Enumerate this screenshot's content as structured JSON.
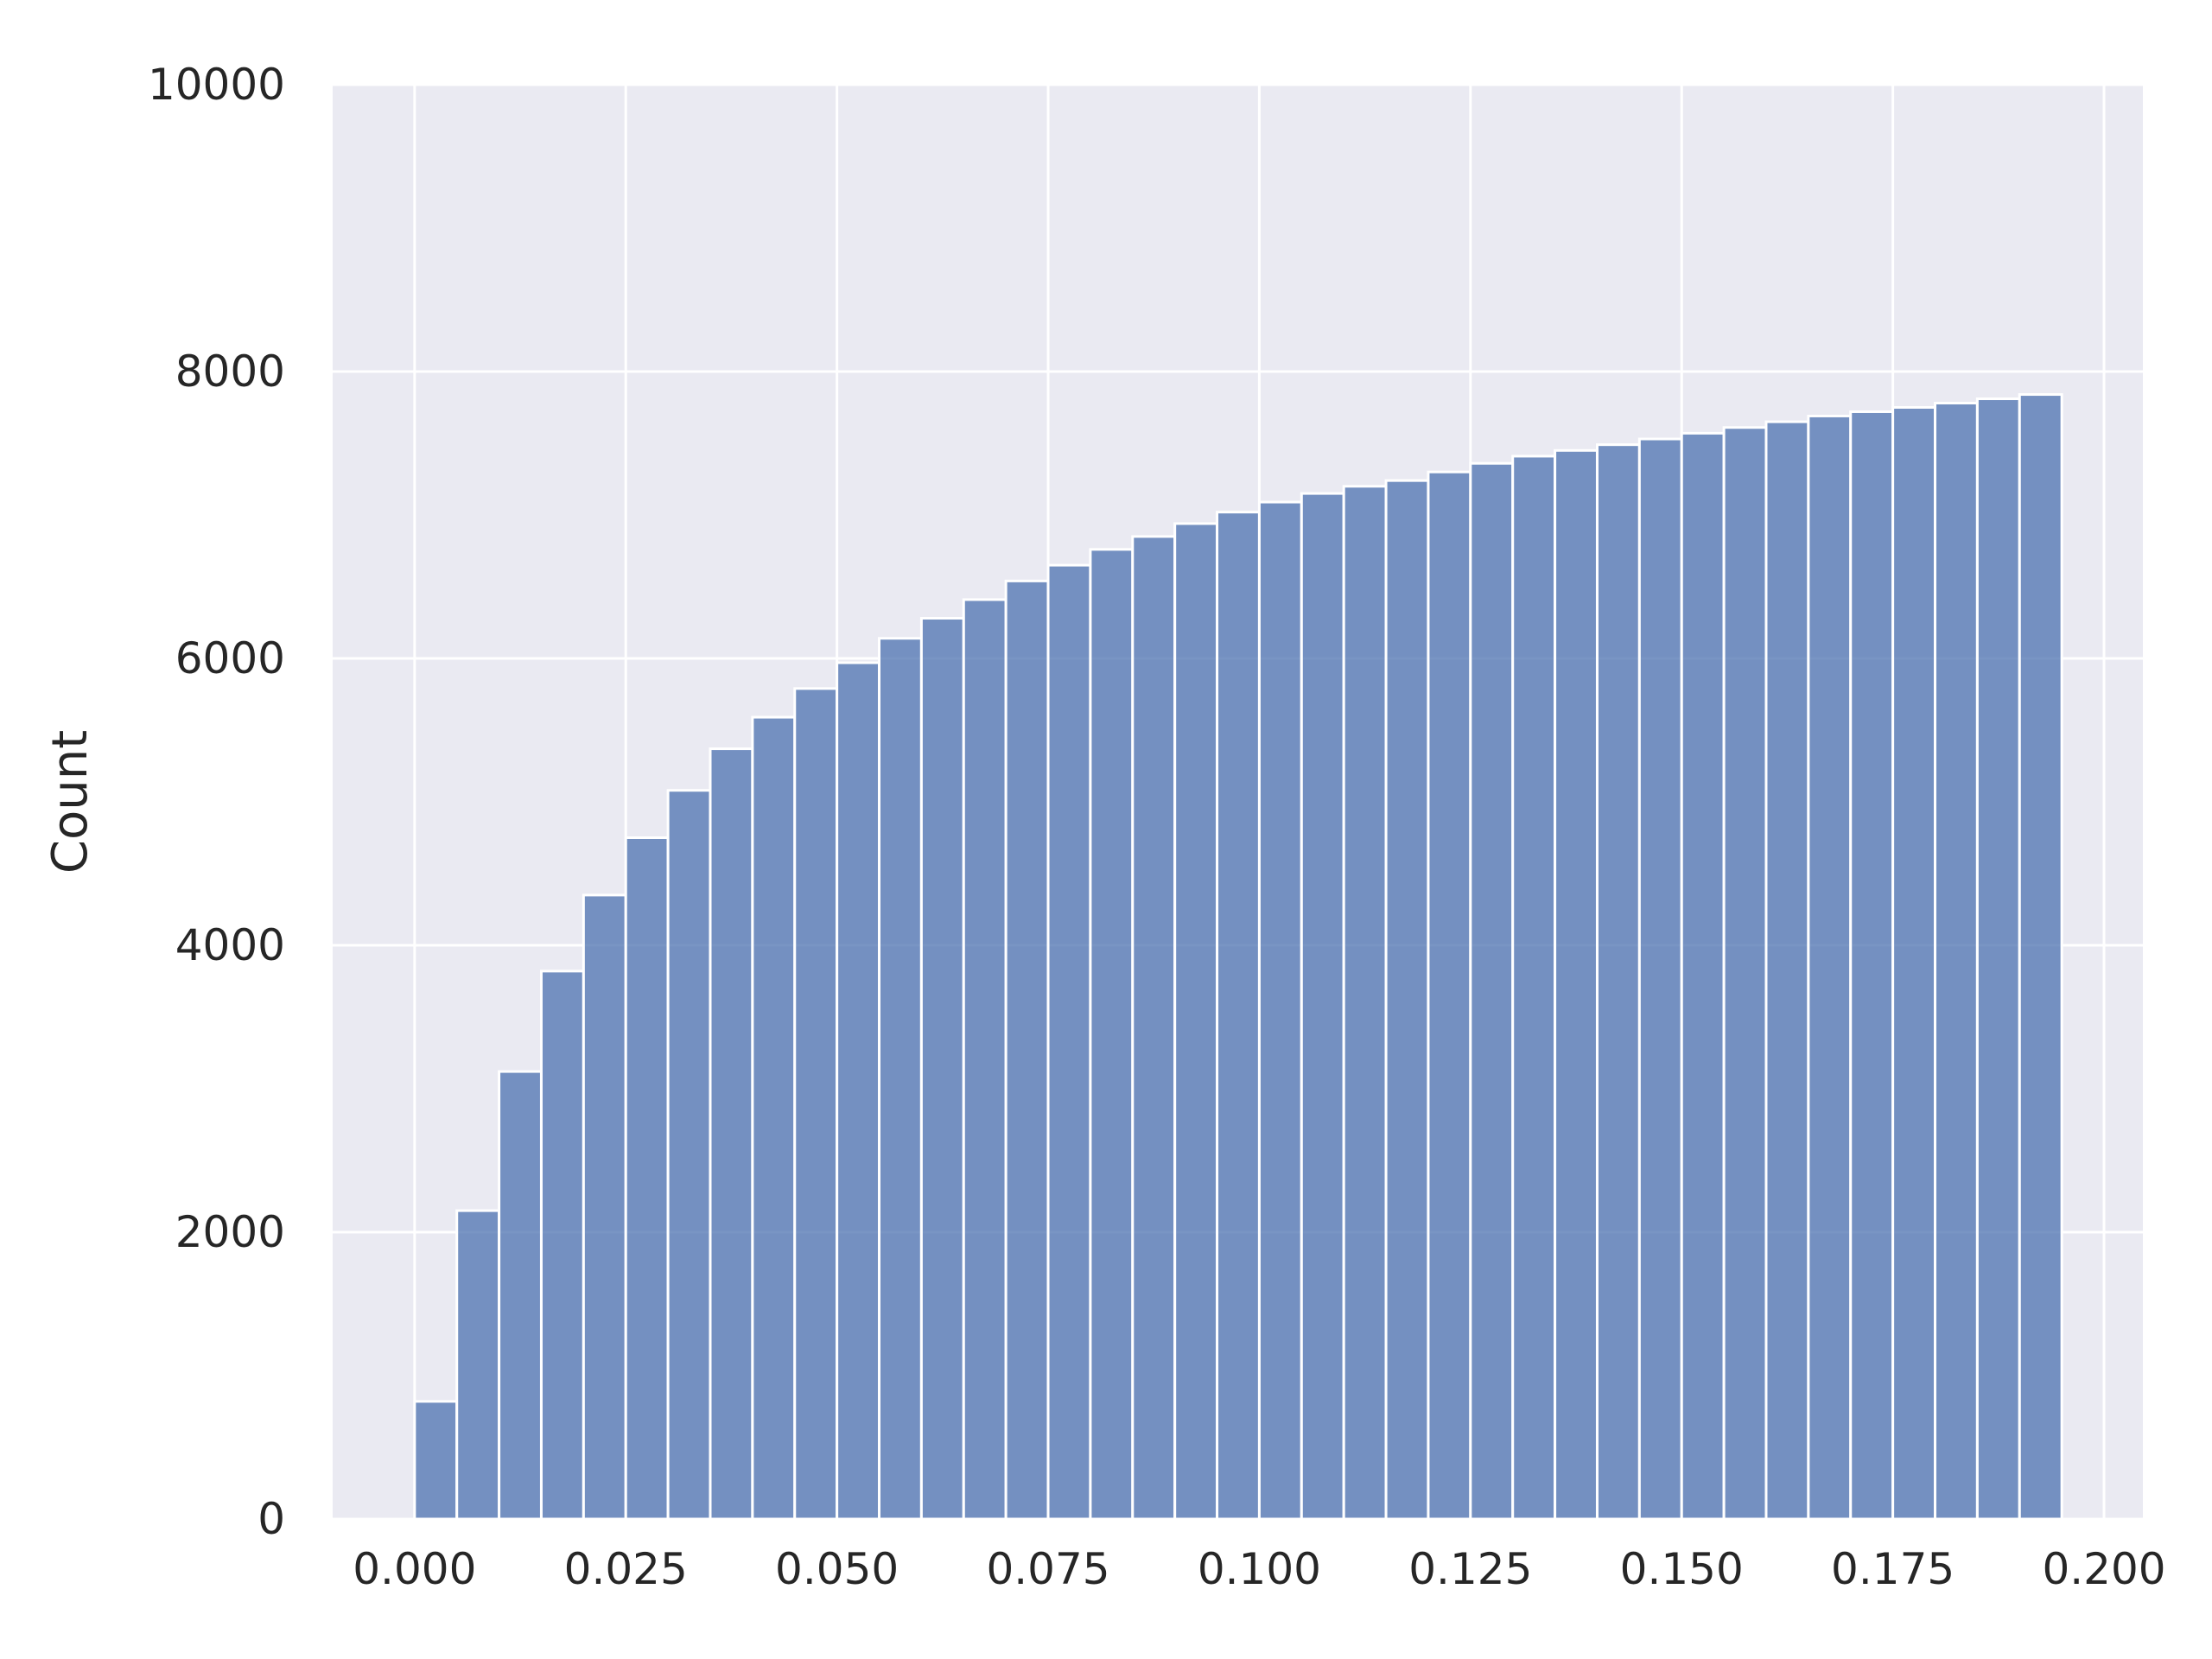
{
  "chart_data": {
    "type": "bar",
    "title": "",
    "xlabel": "",
    "ylabel": "Count",
    "xlim": [
      -0.0097,
      0.2046
    ],
    "ylim": [
      0,
      10000
    ],
    "grid": true,
    "colors": {
      "background": "#eaeaf2",
      "grid": "#ffffff",
      "bar": "#4c72b0",
      "bar_edge": "#ffffff",
      "text": "#262626"
    },
    "x_ticks": [
      "0.000",
      "0.025",
      "0.050",
      "0.075",
      "0.100",
      "0.125",
      "0.150",
      "0.175",
      "0.200"
    ],
    "y_ticks": [
      "0",
      "2000",
      "4000",
      "6000",
      "8000",
      "10000"
    ],
    "bin_start": 0.0,
    "bin_width": 0.005,
    "values": [
      820,
      2150,
      3120,
      3820,
      4350,
      4750,
      5080,
      5370,
      5590,
      5790,
      5970,
      6140,
      6280,
      6410,
      6540,
      6650,
      6760,
      6850,
      6940,
      7020,
      7090,
      7150,
      7200,
      7240,
      7300,
      7360,
      7410,
      7450,
      7490,
      7530,
      7570,
      7610,
      7650,
      7690,
      7720,
      7750,
      7780,
      7810,
      7840
    ]
  }
}
